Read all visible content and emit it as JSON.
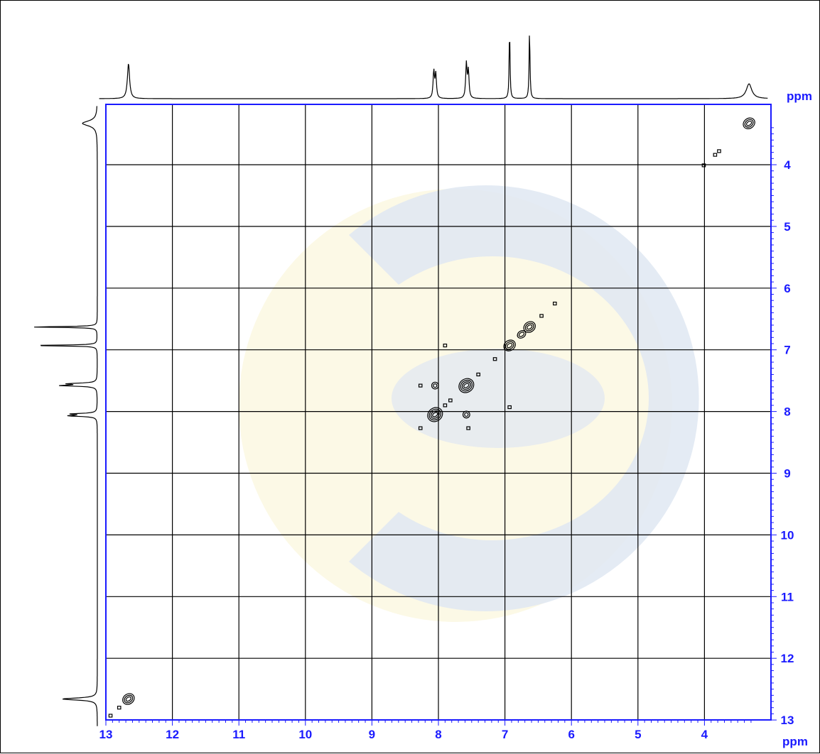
{
  "chart_data": {
    "type": "scatter",
    "subtype": "2D NMR COSY contour plot with 1D projections",
    "x_axis": {
      "label": "ppm",
      "range": [
        13,
        3
      ],
      "reversed": true,
      "ticks": [
        13,
        12,
        11,
        10,
        9,
        8,
        7,
        6,
        5,
        4
      ]
    },
    "y_axis": {
      "label": "ppm",
      "range": [
        3.3,
        13
      ],
      "reversed": true,
      "ticks": [
        4,
        5,
        6,
        7,
        8,
        9,
        10,
        11,
        12,
        13
      ]
    },
    "grid": true,
    "colors": {
      "axis": "#1a1aff",
      "grid": "#000000",
      "trace": "#000000",
      "watermark_blue": "#dfe7f2",
      "watermark_yellow": "#fcf9e6"
    },
    "projection_peaks": [
      {
        "ppm": 12.66,
        "height": 0.52,
        "width": 0.02
      },
      {
        "ppm": 8.07,
        "height": 0.4,
        "width": 0.012
      },
      {
        "ppm": 8.04,
        "height": 0.36,
        "width": 0.012
      },
      {
        "ppm": 7.58,
        "height": 0.51,
        "width": 0.012
      },
      {
        "ppm": 7.55,
        "height": 0.4,
        "width": 0.012
      },
      {
        "ppm": 6.93,
        "height": 1.0,
        "width": 0.008
      },
      {
        "ppm": 6.63,
        "height": 1.0,
        "width": 0.008
      },
      {
        "ppm": 3.33,
        "height": 0.22,
        "width": 0.05
      }
    ],
    "cross_peaks": [
      {
        "x": 3.33,
        "y": 3.33,
        "size": 3
      },
      {
        "x": 3.78,
        "y": 3.78,
        "size": 1
      },
      {
        "x": 3.84,
        "y": 3.84,
        "size": 1
      },
      {
        "x": 4.01,
        "y": 4.01,
        "size": 1
      },
      {
        "x": 6.25,
        "y": 6.25,
        "size": 1
      },
      {
        "x": 6.45,
        "y": 6.45,
        "size": 1
      },
      {
        "x": 6.63,
        "y": 6.63,
        "size": 3
      },
      {
        "x": 6.75,
        "y": 6.75,
        "size": 2
      },
      {
        "x": 6.93,
        "y": 6.93,
        "size": 3
      },
      {
        "x": 7.15,
        "y": 7.15,
        "size": 1
      },
      {
        "x": 7.4,
        "y": 7.4,
        "size": 1
      },
      {
        "x": 7.58,
        "y": 7.58,
        "size": 4
      },
      {
        "x": 7.82,
        "y": 7.82,
        "size": 1
      },
      {
        "x": 7.9,
        "y": 7.9,
        "size": 1
      },
      {
        "x": 8.05,
        "y": 8.05,
        "size": 4
      },
      {
        "x": 8.27,
        "y": 8.27,
        "size": 1
      },
      {
        "x": 12.66,
        "y": 12.66,
        "size": 3
      },
      {
        "x": 12.8,
        "y": 12.8,
        "size": 1
      },
      {
        "x": 12.93,
        "y": 12.93,
        "size": 1
      },
      {
        "x": 8.05,
        "y": 7.58,
        "size": 2
      },
      {
        "x": 7.58,
        "y": 8.05,
        "size": 2
      },
      {
        "x": 8.27,
        "y": 7.58,
        "size": 1
      },
      {
        "x": 7.55,
        "y": 8.27,
        "size": 1
      },
      {
        "x": 7.9,
        "y": 6.93,
        "size": 1
      },
      {
        "x": 6.93,
        "y": 7.93,
        "size": 1
      }
    ]
  }
}
